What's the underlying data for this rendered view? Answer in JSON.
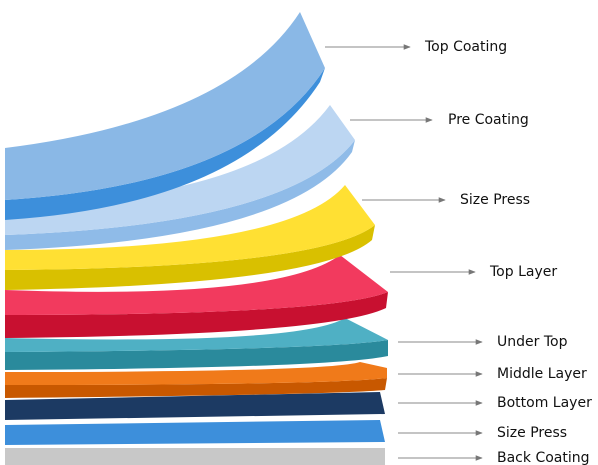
{
  "layers": [
    {
      "label": "Top Coating"
    },
    {
      "label": "Pre Coating"
    },
    {
      "label": "Size Press"
    },
    {
      "label": "Top Layer"
    },
    {
      "label": "Under Top"
    },
    {
      "label": "Middle Layer"
    },
    {
      "label": "Bottom Layer"
    },
    {
      "label": "Size Press"
    },
    {
      "label": "Back Coating"
    }
  ]
}
